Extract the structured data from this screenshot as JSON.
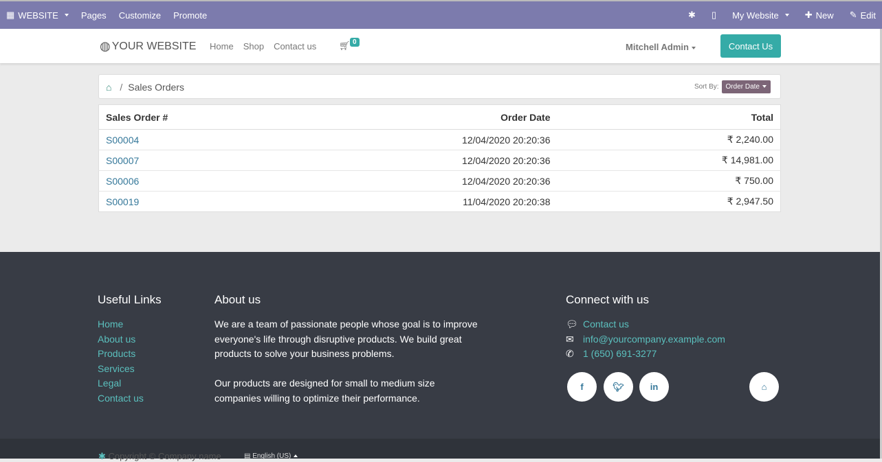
{
  "topbar": {
    "apps": "WEBSITE",
    "pages": "Pages",
    "customize": "Customize",
    "promote": "Promote",
    "site": "My Website",
    "new": "New",
    "edit": "Edit"
  },
  "nav": {
    "logo": "YOUR WEBSITE",
    "menu": [
      "Home",
      "Shop",
      "Contact us"
    ],
    "cart_count": "0",
    "user": "Mitchell Admin",
    "contact_button": "Contact Us"
  },
  "breadcrumb": {
    "separator": "/",
    "current": "Sales Orders",
    "sort_label": "Sort By:",
    "sort_value": "Order Date"
  },
  "table": {
    "headers": [
      "Sales Order #",
      "Order Date",
      "Total"
    ],
    "rows": [
      {
        "order": "S00004",
        "date": "12/04/2020  20:20:36",
        "total": "₹ 2,240.00"
      },
      {
        "order": "S00007",
        "date": "12/04/2020  20:20:36",
        "total": "₹ 14,981.00"
      },
      {
        "order": "S00006",
        "date": "12/04/2020  20:20:36",
        "total": "₹ 750.00"
      },
      {
        "order": "S00019",
        "date": "11/04/2020  20:20:38",
        "total": "₹ 2,947.50"
      }
    ]
  },
  "footer": {
    "links_title": "Useful Links",
    "links": [
      "Home",
      "About us",
      "Products",
      "Services",
      "Legal",
      "Contact us"
    ],
    "about_title": "About us",
    "about_p1": "We are a team of passionate people whose goal is to improve everyone's life through disruptive products. We build great products to solve your business problems.",
    "about_p2": "Our products are designed for small to medium size companies willing to optimize their performance.",
    "connect_title": "Connect with us",
    "contact": "Contact us",
    "email": "info@yourcompany.example.com",
    "phone": "1 (650) 691-3277"
  },
  "copyright": {
    "text": "Copyright © Company name",
    "language": "English (US)"
  },
  "colors": {
    "topbar": "#7c7bad",
    "accent": "#35aba7",
    "footer": "#383c45"
  }
}
